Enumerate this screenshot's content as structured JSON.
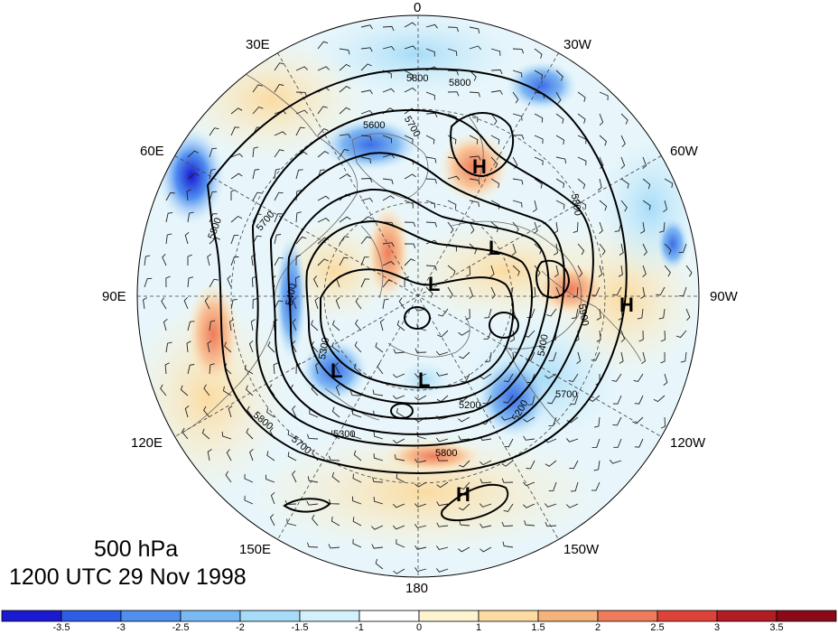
{
  "title": {
    "level": "500 hPa",
    "time": "1200 UTC 29 Nov 1998"
  },
  "longitude_labels": {
    "top": "0",
    "ne": "30W",
    "nw": "30E",
    "e1": "60W",
    "w1": "60E",
    "e2": "90W",
    "w2": "90E",
    "e3": "120W",
    "w3": "120E",
    "se": "150W",
    "sw": "150E",
    "bottom": "180"
  },
  "contour_labels": [
    "5800",
    "5800",
    "5600",
    "5700",
    "5700",
    "5800",
    "5400",
    "5300",
    "5200",
    "5300",
    "5200",
    "5400",
    "5800",
    "5700",
    "5800",
    "5800",
    "5700",
    "5900"
  ],
  "centers": {
    "highs": [
      "H",
      "H",
      "H"
    ],
    "lows": [
      "L",
      "L",
      "L",
      "L"
    ]
  },
  "colorbar": {
    "labels": [
      "-3.5",
      "-3",
      "-2.5",
      "-2",
      "-1.5",
      "-1",
      "0",
      "1",
      "1.5",
      "2",
      "2.5",
      "3",
      "3.5"
    ],
    "colors": [
      "#1a1ad2",
      "#2e5ee8",
      "#4f8ff0",
      "#79baf5",
      "#a6dcf8",
      "#d3f0fb",
      "#ffffff",
      "#fdf3cf",
      "#fbdba1",
      "#f6b27b",
      "#ee7c5a",
      "#de4238",
      "#b21c22",
      "#8c0a18"
    ]
  },
  "colors": {
    "contour": "#000000",
    "graticule": "#444444",
    "coast": "#666666"
  }
}
